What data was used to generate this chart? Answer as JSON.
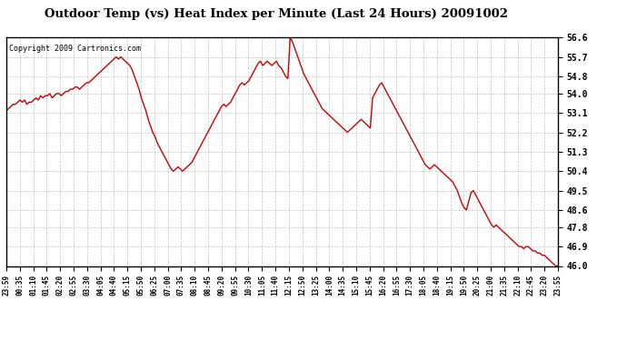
{
  "title": "Outdoor Temp (vs) Heat Index per Minute (Last 24 Hours) 20091002",
  "copyright": "Copyright 2009 Cartronics.com",
  "line_color": "#cc0000",
  "bg_color": "#ffffff",
  "grid_color": "#aaaaaa",
  "ylim": [
    46.0,
    56.6
  ],
  "yticks": [
    46.0,
    46.9,
    47.8,
    48.6,
    49.5,
    50.4,
    51.3,
    52.2,
    53.1,
    54.0,
    54.8,
    55.7,
    56.6
  ],
  "xtick_labels": [
    "23:59",
    "00:35",
    "01:10",
    "01:45",
    "02:20",
    "02:55",
    "03:30",
    "04:05",
    "04:40",
    "05:15",
    "05:50",
    "06:25",
    "07:00",
    "07:35",
    "08:10",
    "08:45",
    "09:20",
    "09:55",
    "10:30",
    "11:05",
    "11:40",
    "12:15",
    "12:50",
    "13:25",
    "14:00",
    "14:35",
    "15:10",
    "15:45",
    "16:20",
    "16:55",
    "17:30",
    "18:05",
    "18:40",
    "19:15",
    "19:50",
    "20:25",
    "21:00",
    "21:35",
    "22:10",
    "22:45",
    "23:20",
    "23:55"
  ],
  "data_y": [
    53.2,
    53.3,
    53.4,
    53.5,
    53.5,
    53.6,
    53.7,
    53.6,
    53.7,
    53.5,
    53.6,
    53.6,
    53.7,
    53.8,
    53.7,
    53.9,
    53.8,
    53.9,
    53.9,
    54.0,
    53.8,
    53.9,
    54.0,
    54.0,
    53.9,
    54.0,
    54.1,
    54.1,
    54.2,
    54.2,
    54.3,
    54.3,
    54.2,
    54.3,
    54.4,
    54.5,
    54.5,
    54.6,
    54.7,
    54.8,
    54.9,
    55.0,
    55.1,
    55.2,
    55.3,
    55.4,
    55.5,
    55.6,
    55.7,
    55.6,
    55.7,
    55.6,
    55.5,
    55.4,
    55.3,
    55.1,
    54.8,
    54.5,
    54.2,
    53.8,
    53.5,
    53.2,
    52.8,
    52.5,
    52.2,
    52.0,
    51.7,
    51.5,
    51.3,
    51.1,
    50.9,
    50.7,
    50.5,
    50.4,
    50.5,
    50.6,
    50.5,
    50.4,
    50.5,
    50.6,
    50.7,
    50.8,
    51.0,
    51.2,
    51.4,
    51.6,
    51.8,
    52.0,
    52.2,
    52.4,
    52.6,
    52.8,
    53.0,
    53.2,
    53.4,
    53.5,
    53.4,
    53.5,
    53.6,
    53.8,
    54.0,
    54.2,
    54.4,
    54.5,
    54.4,
    54.5,
    54.6,
    54.8,
    55.0,
    55.2,
    55.4,
    55.5,
    55.3,
    55.4,
    55.5,
    55.4,
    55.3,
    55.4,
    55.5,
    55.3,
    55.2,
    55.0,
    54.8,
    54.7,
    56.6,
    56.4,
    56.1,
    55.8,
    55.5,
    55.2,
    54.9,
    54.7,
    54.5,
    54.3,
    54.1,
    53.9,
    53.7,
    53.5,
    53.3,
    53.2,
    53.1,
    53.0,
    52.9,
    52.8,
    52.7,
    52.6,
    52.5,
    52.4,
    52.3,
    52.2,
    52.3,
    52.4,
    52.5,
    52.6,
    52.7,
    52.8,
    52.7,
    52.6,
    52.5,
    52.4,
    53.8,
    54.0,
    54.2,
    54.4,
    54.5,
    54.3,
    54.1,
    53.9,
    53.7,
    53.5,
    53.3,
    53.1,
    52.9,
    52.7,
    52.5,
    52.3,
    52.1,
    51.9,
    51.7,
    51.5,
    51.3,
    51.1,
    50.9,
    50.7,
    50.6,
    50.5,
    50.6,
    50.7,
    50.6,
    50.5,
    50.4,
    50.3,
    50.2,
    50.1,
    50.0,
    49.9,
    49.7,
    49.5,
    49.2,
    48.9,
    48.7,
    48.6,
    49.0,
    49.4,
    49.5,
    49.3,
    49.1,
    48.9,
    48.7,
    48.5,
    48.3,
    48.1,
    47.9,
    47.8,
    47.9,
    47.8,
    47.7,
    47.6,
    47.5,
    47.4,
    47.3,
    47.2,
    47.1,
    47.0,
    46.9,
    46.9,
    46.8,
    46.9,
    46.9,
    46.8,
    46.7,
    46.7,
    46.6,
    46.6,
    46.5,
    46.5,
    46.4,
    46.3,
    46.2,
    46.1,
    46.0,
    46.0
  ]
}
